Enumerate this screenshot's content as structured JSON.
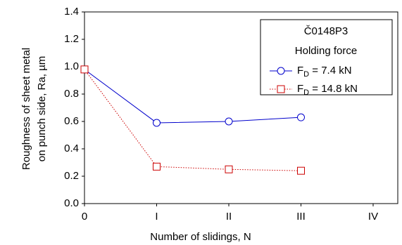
{
  "chart_data": {
    "type": "line",
    "x_label": "Number of slidings, N",
    "y_label": [
      "Roughness of sheet metal",
      "on punch side, Ra, µm"
    ],
    "categories": [
      "0",
      "I",
      "II",
      "III",
      "IV"
    ],
    "series": [
      {
        "name": "FD = 7.4 kN",
        "color": "#0000cc",
        "marker": "circle",
        "dash": "solid",
        "values": [
          0.98,
          0.59,
          0.6,
          0.63,
          null
        ]
      },
      {
        "name": "FD = 14.8 kN",
        "color": "#cc0000",
        "marker": "square",
        "dash": "dotted",
        "values": [
          0.98,
          0.27,
          0.25,
          0.24,
          null
        ]
      }
    ],
    "legend_title": [
      "Č0148P3",
      "Holding force"
    ],
    "legend": "upper right",
    "ylim": [
      0,
      1.4
    ],
    "yticks": [
      {
        "value": 0,
        "label": "0.0"
      },
      0.2,
      0.4,
      0.6,
      0.8,
      {
        "value": 1,
        "label": "1.0"
      },
      1.2,
      1.4
    ],
    "grid": false
  }
}
